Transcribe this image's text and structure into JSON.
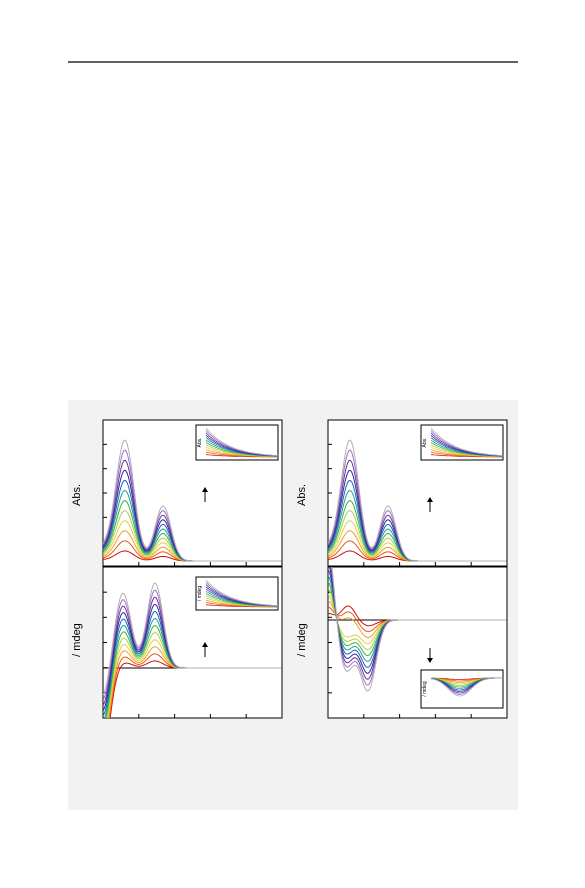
{
  "figure": {
    "panels": [
      {
        "label": "Abs.",
        "inset_label": "Abs."
      },
      {
        "label": "/ mdeg",
        "inset_label": "/ mdeg"
      },
      {
        "label": "Abs.",
        "inset_label": "Abs."
      },
      {
        "label": "/ mdeg",
        "inset_label": "/ mdeg"
      }
    ]
  }
}
